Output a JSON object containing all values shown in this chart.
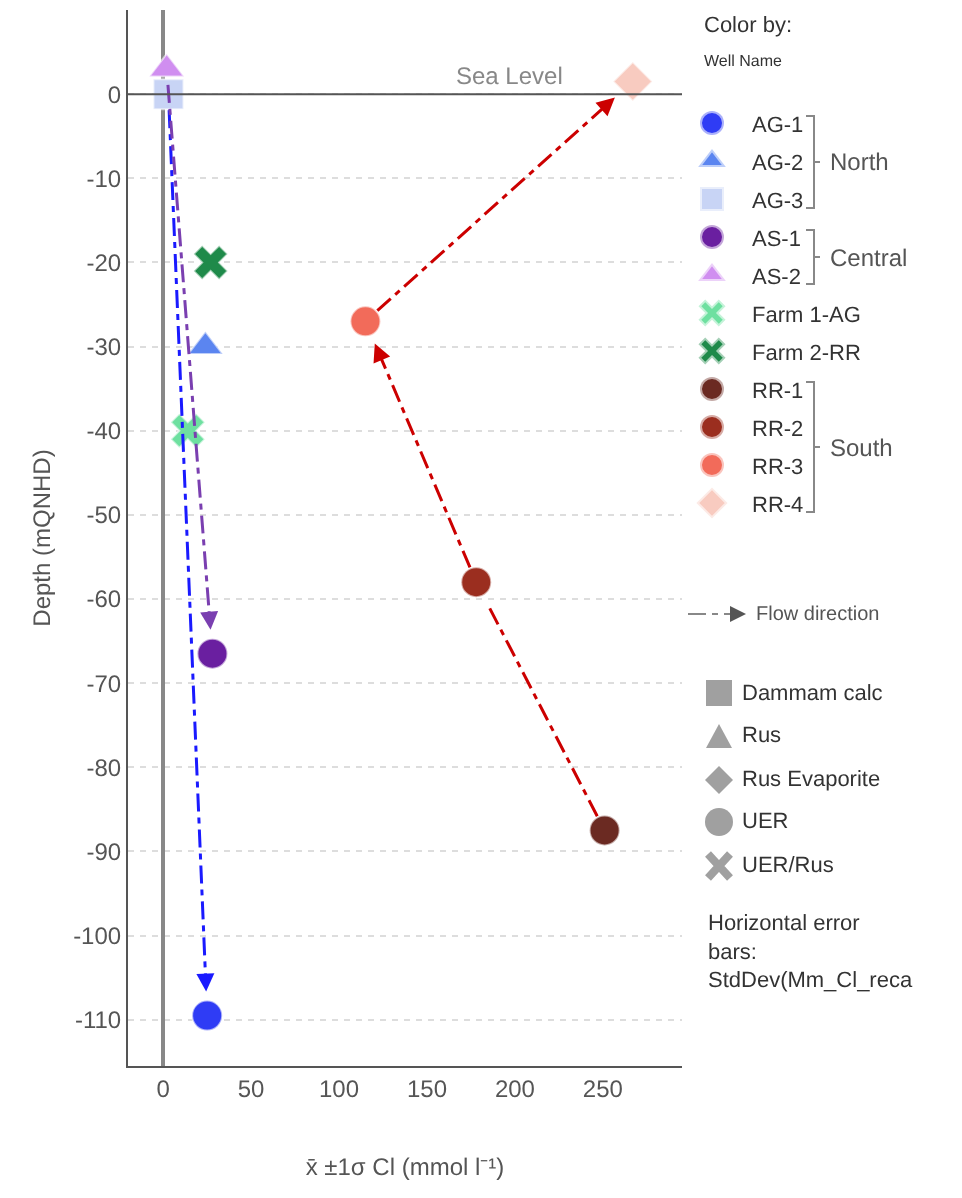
{
  "chart_data": {
    "type": "scatter",
    "xlabel": "x̄ ±1σ Cl (mmol l⁻¹)",
    "ylabel": "Depth (mQNHD)",
    "legend_title": "Color by:",
    "xlim": [
      -20,
      295
    ],
    "xticks": [
      0,
      50,
      100,
      150,
      200,
      250
    ],
    "ylim": [
      -115.5,
      10
    ],
    "yticks": [
      0,
      -10,
      -20,
      -30,
      -40,
      -50,
      -60,
      -70,
      -80,
      -90,
      -100,
      -110
    ],
    "grid": "y",
    "legend": "right",
    "ref_lines": [
      {
        "axis": "y",
        "value": 0,
        "label": "Sea Level",
        "color": "#555555"
      }
    ],
    "series": [
      {
        "name": "AG-1",
        "color": "#2f3cf5",
        "marker": "circle",
        "x": [
          25
        ],
        "values": [
          -109.5
        ]
      },
      {
        "name": "AG-2",
        "color": "#5b85f0",
        "marker": "triangle",
        "x": [
          24
        ],
        "values": [
          -30
        ]
      },
      {
        "name": "AG-3",
        "color": "#c8d4f5",
        "marker": "square",
        "x": [
          3
        ],
        "values": [
          0
        ]
      },
      {
        "name": "AS-1",
        "color": "#6a1fa0",
        "marker": "circle",
        "x": [
          28
        ],
        "values": [
          -66.5
        ]
      },
      {
        "name": "AS-2",
        "color": "#d08ef0",
        "marker": "triangle",
        "x": [
          2
        ],
        "values": [
          3
        ]
      },
      {
        "name": "Farm 1-AG",
        "color": "#6ee0a0",
        "marker": "cross",
        "x": [
          14
        ],
        "values": [
          -40
        ]
      },
      {
        "name": "Farm 2-RR",
        "color": "#1f8a4a",
        "marker": "cross",
        "x": [
          27
        ],
        "values": [
          -20
        ]
      },
      {
        "name": "RR-1",
        "color": "#6b2a22",
        "marker": "circle",
        "x": [
          251
        ],
        "values": [
          -87.5
        ]
      },
      {
        "name": "RR-2",
        "color": "#9b2e1f",
        "marker": "circle",
        "x": [
          178
        ],
        "values": [
          -58
        ]
      },
      {
        "name": "RR-3",
        "color": "#f26b5a",
        "marker": "circle",
        "x": [
          115
        ],
        "values": [
          -27
        ]
      },
      {
        "name": "RR-4",
        "color": "#f8cbc0",
        "marker": "diamond",
        "x": [
          267
        ],
        "values": [
          1.5
        ]
      }
    ],
    "annotations": [
      "Well Name",
      "North",
      "Central",
      "South",
      "Flow direction",
      "Dammam calc",
      "Rus",
      "Rus Evaporite",
      "UER",
      "UER/Rus",
      "Horizontal error bars: StdDev(Mm_Cl_reca"
    ]
  }
}
